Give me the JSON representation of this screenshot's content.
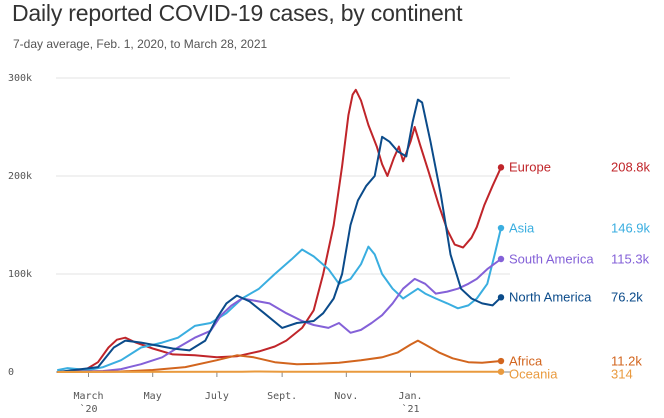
{
  "title": "Daily reported COVID-19 cases, by continent",
  "subtitle": "7-day average, Feb. 1, 2020, to March 28, 2021",
  "chart_data": {
    "type": "line",
    "title": "Daily reported COVID-19 cases, by continent",
    "subtitle": "7-day average, Feb. 1, 2020, to March 28, 2021",
    "xlabel": "",
    "ylabel": "",
    "x_range": [
      "2020-02-01",
      "2021-03-28"
    ],
    "ylim": [
      0,
      300000
    ],
    "yticks": [
      0,
      100000,
      200000,
      300000
    ],
    "ytick_labels": [
      "0",
      "100k",
      "200k",
      "300k"
    ],
    "xticks": [
      {
        "date": "2020-03-01",
        "label": "March",
        "sub": "`20"
      },
      {
        "date": "2020-05-01",
        "label": "May",
        "sub": ""
      },
      {
        "date": "2020-07-01",
        "label": "July",
        "sub": ""
      },
      {
        "date": "2020-09-01",
        "label": "Sept.",
        "sub": ""
      },
      {
        "date": "2020-11-01",
        "label": "Nov.",
        "sub": ""
      },
      {
        "date": "2021-01-01",
        "label": "Jan.",
        "sub": "`21"
      }
    ],
    "grid": true,
    "legend": "right-end-labels",
    "series": [
      {
        "name": "Europe",
        "color": "#c0252a",
        "end_label": "208.8k",
        "x": [
          "2020-02-01",
          "2020-02-25",
          "2020-03-10",
          "2020-03-20",
          "2020-03-28",
          "2020-04-05",
          "2020-04-15",
          "2020-05-01",
          "2020-05-20",
          "2020-06-10",
          "2020-07-01",
          "2020-07-20",
          "2020-08-10",
          "2020-08-25",
          "2020-09-05",
          "2020-09-20",
          "2020-10-01",
          "2020-10-10",
          "2020-10-20",
          "2020-10-28",
          "2020-11-03",
          "2020-11-07",
          "2020-11-10",
          "2020-11-15",
          "2020-11-22",
          "2020-11-30",
          "2020-12-05",
          "2020-12-10",
          "2020-12-16",
          "2020-12-21",
          "2020-12-25",
          "2021-01-01",
          "2021-01-05",
          "2021-01-10",
          "2021-01-18",
          "2021-01-28",
          "2021-02-05",
          "2021-02-12",
          "2021-02-20",
          "2021-02-28",
          "2021-03-05",
          "2021-03-12",
          "2021-03-20",
          "2021-03-28"
        ],
        "y": [
          0,
          1000,
          10000,
          25000,
          33000,
          35000,
          30000,
          24000,
          18000,
          17000,
          15000,
          16000,
          21000,
          26000,
          32000,
          45000,
          63000,
          100000,
          150000,
          210000,
          262000,
          283000,
          288000,
          277000,
          252000,
          230000,
          212000,
          200000,
          218000,
          230000,
          215000,
          235000,
          250000,
          232000,
          205000,
          170000,
          145000,
          130000,
          127000,
          137000,
          148000,
          170000,
          190000,
          208800
        ]
      },
      {
        "name": "Asia",
        "color": "#3aaee0",
        "end_label": "146.9k",
        "x": [
          "2020-02-01",
          "2020-02-10",
          "2020-02-20",
          "2020-03-01",
          "2020-03-15",
          "2020-04-01",
          "2020-04-20",
          "2020-05-10",
          "2020-05-25",
          "2020-06-10",
          "2020-06-25",
          "2020-07-10",
          "2020-07-25",
          "2020-08-10",
          "2020-08-25",
          "2020-09-10",
          "2020-09-20",
          "2020-10-01",
          "2020-10-15",
          "2020-10-25",
          "2020-11-05",
          "2020-11-15",
          "2020-11-22",
          "2020-11-28",
          "2020-12-05",
          "2020-12-15",
          "2020-12-25",
          "2021-01-01",
          "2021-01-08",
          "2021-01-15",
          "2021-01-25",
          "2021-02-05",
          "2021-02-15",
          "2021-02-25",
          "2021-03-05",
          "2021-03-15",
          "2021-03-22",
          "2021-03-28"
        ],
        "y": [
          2000,
          4000,
          3000,
          2000,
          5000,
          12000,
          25000,
          30000,
          35000,
          47000,
          50000,
          60000,
          75000,
          85000,
          100000,
          115000,
          125000,
          118000,
          105000,
          90000,
          95000,
          110000,
          128000,
          120000,
          100000,
          85000,
          75000,
          80000,
          85000,
          80000,
          75000,
          70000,
          65000,
          68000,
          75000,
          90000,
          120000,
          146900
        ]
      },
      {
        "name": "South America",
        "color": "#8461d8",
        "end_label": "115.3k",
        "x": [
          "2020-02-01",
          "2020-03-15",
          "2020-04-01",
          "2020-04-20",
          "2020-05-10",
          "2020-05-25",
          "2020-06-10",
          "2020-06-25",
          "2020-07-05",
          "2020-07-15",
          "2020-07-25",
          "2020-08-05",
          "2020-08-20",
          "2020-09-05",
          "2020-09-20",
          "2020-10-01",
          "2020-10-15",
          "2020-10-25",
          "2020-11-05",
          "2020-11-15",
          "2020-11-25",
          "2020-12-05",
          "2020-12-15",
          "2020-12-25",
          "2021-01-05",
          "2021-01-15",
          "2021-01-25",
          "2021-02-05",
          "2021-02-15",
          "2021-02-25",
          "2021-03-05",
          "2021-03-15",
          "2021-03-28"
        ],
        "y": [
          0,
          1000,
          3000,
          8000,
          15000,
          25000,
          35000,
          42000,
          58000,
          68000,
          75000,
          73000,
          70000,
          60000,
          52000,
          48000,
          45000,
          50000,
          40000,
          43000,
          50000,
          58000,
          70000,
          85000,
          95000,
          90000,
          80000,
          82000,
          85000,
          90000,
          95000,
          105000,
          115300
        ]
      },
      {
        "name": "North America",
        "color": "#0b4b8a",
        "end_label": "76.2k",
        "x": [
          "2020-02-01",
          "2020-03-10",
          "2020-03-25",
          "2020-04-05",
          "2020-04-20",
          "2020-05-05",
          "2020-05-20",
          "2020-06-05",
          "2020-06-20",
          "2020-07-01",
          "2020-07-10",
          "2020-07-20",
          "2020-08-01",
          "2020-08-15",
          "2020-09-01",
          "2020-09-15",
          "2020-10-01",
          "2020-10-10",
          "2020-10-20",
          "2020-10-28",
          "2020-11-05",
          "2020-11-12",
          "2020-11-20",
          "2020-11-28",
          "2020-12-05",
          "2020-12-12",
          "2020-12-20",
          "2020-12-28",
          "2021-01-03",
          "2021-01-08",
          "2021-01-12",
          "2021-01-20",
          "2021-01-30",
          "2021-02-08",
          "2021-02-18",
          "2021-02-28",
          "2021-03-10",
          "2021-03-20",
          "2021-03-28"
        ],
        "y": [
          0,
          5000,
          25000,
          32000,
          30000,
          27000,
          24000,
          22000,
          32000,
          55000,
          70000,
          78000,
          72000,
          60000,
          45000,
          50000,
          52000,
          60000,
          75000,
          100000,
          150000,
          175000,
          190000,
          200000,
          240000,
          235000,
          225000,
          220000,
          255000,
          278000,
          275000,
          235000,
          180000,
          120000,
          85000,
          75000,
          70000,
          68000,
          76200
        ]
      },
      {
        "name": "Africa",
        "color": "#d2651e",
        "end_label": "11.2k",
        "x": [
          "2020-02-01",
          "2020-04-01",
          "2020-05-01",
          "2020-06-01",
          "2020-07-01",
          "2020-07-20",
          "2020-08-05",
          "2020-08-25",
          "2020-09-15",
          "2020-10-05",
          "2020-10-25",
          "2020-11-15",
          "2020-12-05",
          "2020-12-20",
          "2021-01-01",
          "2021-01-08",
          "2021-01-15",
          "2021-01-28",
          "2021-02-10",
          "2021-02-25",
          "2021-03-10",
          "2021-03-28"
        ],
        "y": [
          0,
          500,
          2000,
          5000,
          12000,
          17000,
          15000,
          10000,
          8000,
          8500,
          9500,
          12000,
          15000,
          20000,
          28000,
          32000,
          28000,
          20000,
          14000,
          10000,
          9500,
          11200
        ]
      },
      {
        "name": "Oceania",
        "color": "#e99a3e",
        "end_label": "314",
        "x": [
          "2020-02-01",
          "2020-07-25",
          "2020-08-10",
          "2020-09-01",
          "2021-03-28"
        ],
        "y": [
          0,
          300,
          550,
          200,
          314
        ]
      }
    ]
  }
}
